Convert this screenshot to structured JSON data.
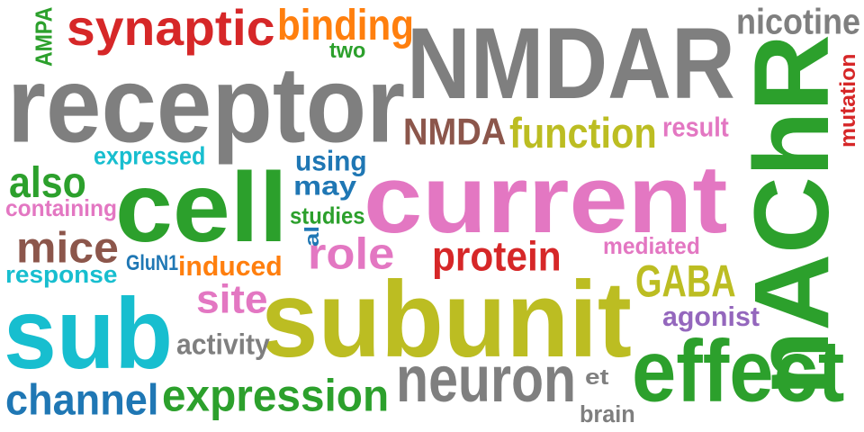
{
  "words": [
    {
      "text": "NMDAR",
      "color": "#7f7f7f"
    },
    {
      "text": "receptor",
      "color": "#7f7f7f"
    },
    {
      "text": "nAChR",
      "color": "#2ca02c"
    },
    {
      "text": "current",
      "color": "#e377c2"
    },
    {
      "text": "subunit",
      "color": "#bcbd22"
    },
    {
      "text": "sub",
      "color": "#17becf"
    },
    {
      "text": "cell",
      "color": "#2ca02c"
    },
    {
      "text": "effect",
      "color": "#2ca02c"
    },
    {
      "text": "synaptic",
      "color": "#d62728"
    },
    {
      "text": "binding",
      "color": "#ff7f0e"
    },
    {
      "text": "nicotine",
      "color": "#7f7f7f"
    },
    {
      "text": "neuron",
      "color": "#7f7f7f"
    },
    {
      "text": "expression",
      "color": "#2ca02c"
    },
    {
      "text": "channel",
      "color": "#1f77b4"
    },
    {
      "text": "function",
      "color": "#bcbd22"
    },
    {
      "text": "NMDA",
      "color": "#8c564b"
    },
    {
      "text": "mice",
      "color": "#8c564b"
    },
    {
      "text": "protein",
      "color": "#d62728"
    },
    {
      "text": "role",
      "color": "#e377c2"
    },
    {
      "text": "GABA",
      "color": "#bcbd22"
    },
    {
      "text": "also",
      "color": "#2ca02c"
    },
    {
      "text": "site",
      "color": "#e377c2"
    },
    {
      "text": "agonist",
      "color": "#9467bd"
    },
    {
      "text": "using",
      "color": "#1f77b4"
    },
    {
      "text": "may",
      "color": "#1f77b4"
    },
    {
      "text": "activity",
      "color": "#7f7f7f"
    },
    {
      "text": "induced",
      "color": "#ff7f0e"
    },
    {
      "text": "expressed",
      "color": "#17becf"
    },
    {
      "text": "containing",
      "color": "#e377c2"
    },
    {
      "text": "response",
      "color": "#17becf"
    },
    {
      "text": "studies",
      "color": "#2ca02c"
    },
    {
      "text": "result",
      "color": "#e377c2"
    },
    {
      "text": "mediated",
      "color": "#e377c2"
    },
    {
      "text": "mutation",
      "color": "#d62728"
    },
    {
      "text": "two",
      "color": "#2ca02c"
    },
    {
      "text": "AMPA",
      "color": "#2ca02c"
    },
    {
      "text": "GluN1",
      "color": "#1f77b4"
    },
    {
      "text": "al",
      "color": "#1f77b4"
    },
    {
      "text": "et",
      "color": "#7f7f7f"
    },
    {
      "text": "brain",
      "color": "#7f7f7f"
    }
  ]
}
